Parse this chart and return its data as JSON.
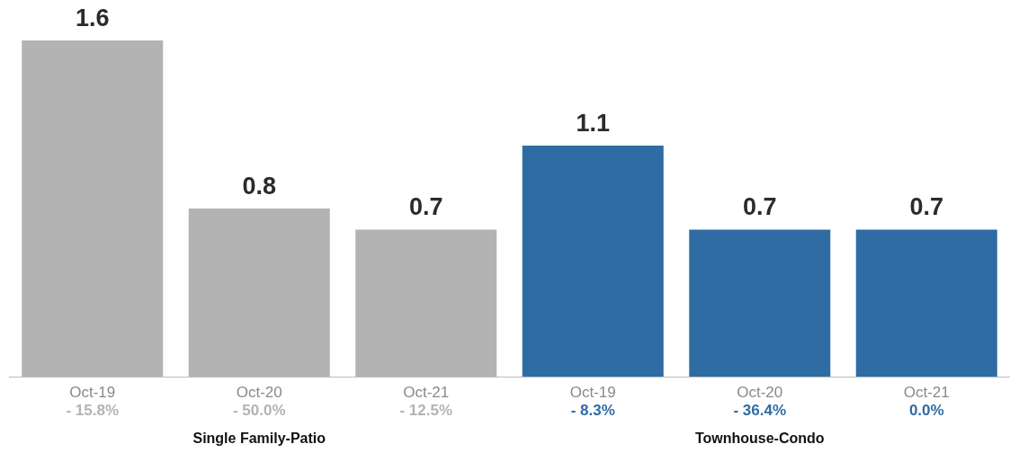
{
  "chart_data": {
    "type": "bar",
    "categories": [
      "Oct-19\n- 15.8%",
      "Oct-20\n- 50.0%",
      "Oct-21\n- 12.5%",
      "Oct-19\n- 8.3%",
      "Oct-20\n- 36.4%",
      "Oct-21\n0.0%"
    ],
    "values": [
      1.6,
      0.8,
      0.7,
      1.1,
      0.7,
      0.7
    ],
    "colors": [
      "#b3b3b3",
      "#b3b3b3",
      "#b3b3b3",
      "#2f6ca3",
      "#2f6ca3",
      "#2f6ca3"
    ],
    "data_labels": true,
    "legend": false,
    "tick_labels": "x",
    "annotations": [
      "Single Family-Patio",
      "Townhouse-Condo"
    ]
  }
}
